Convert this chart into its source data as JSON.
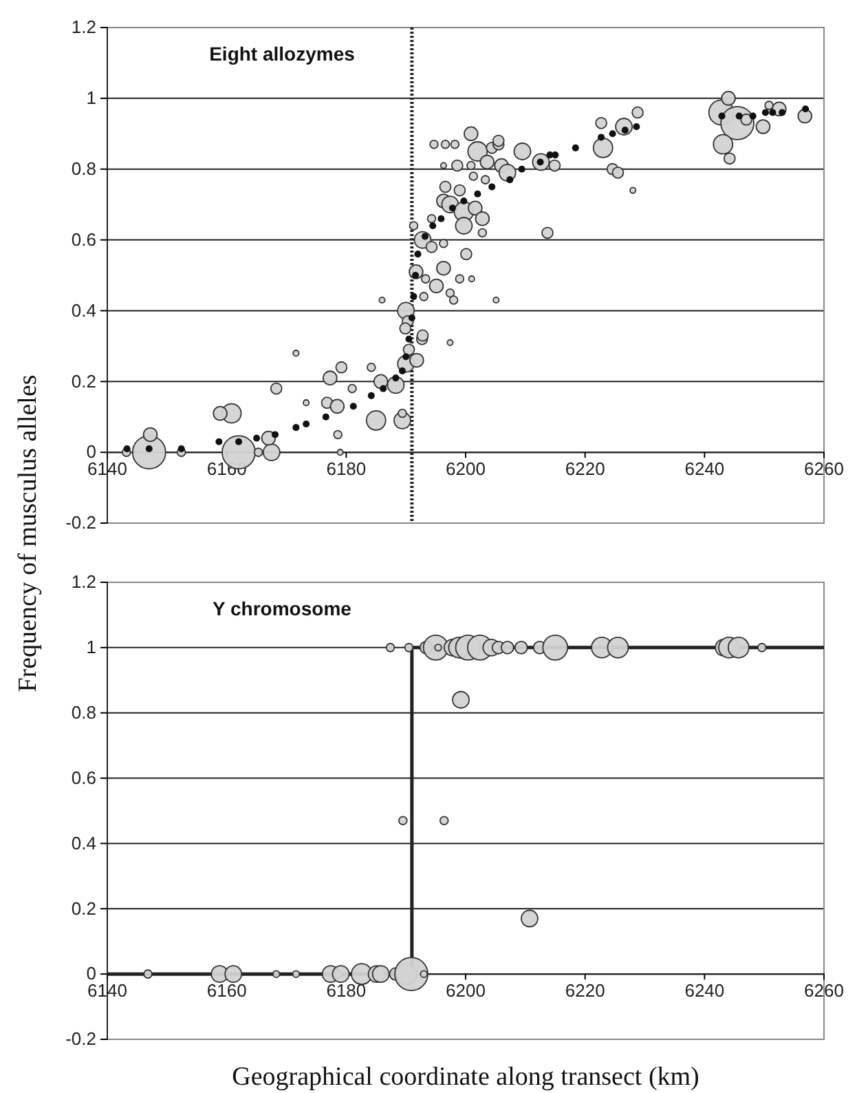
{
  "chart_data": [
    {
      "type": "bubble",
      "title": "Eight allozymes",
      "ylabel": "Frequency of musculus alleles",
      "xlim": [
        6140,
        6260
      ],
      "xticks": [
        6140,
        6160,
        6180,
        6200,
        6220,
        6240,
        6260
      ],
      "ylim": [
        -0.2,
        1.2
      ],
      "yticks": [
        -0.2,
        0,
        0.2,
        0.4,
        0.6,
        0.8,
        1,
        1.2
      ],
      "grid": "y",
      "marker": "circle",
      "ref_lines": [
        {
          "axis": "x",
          "value": 6191,
          "color": "#222222",
          "line_style": "dotted"
        }
      ],
      "series": [
        {
          "type": "bubble",
          "color": "#d3d3d3",
          "x": [
            6147,
            6147.2,
            6143.2,
            6152.4,
            6162,
            6160.8,
            6158.9,
            6165.3,
            6167.5,
            6167,
            6168.3,
            6171.6,
            6173.3,
            6177.3,
            6179.2,
            6176.8,
            6178.5,
            6178.6,
            6179,
            6181,
            6185,
            6184.2,
            6185.8,
            6188.3,
            6189.4,
            6189.4,
            6190,
            6191.8,
            6192.7,
            6200.9,
            6194.7,
            6196.6,
            6198.2,
            6202,
            6204.4,
            6205.5,
            6196.3,
            6198.6,
            6200.9,
            6203.6,
            6206,
            6201.3,
            6203.3,
            6196.6,
            6199,
            6196.3,
            6197.4,
            6199.7,
            6201.6,
            6202.8,
            6199.7,
            6194.3,
            6191.3,
            6192.8,
            6194.3,
            6196.3,
            6200.1,
            6202.8,
            6191.7,
            6196.3,
            6195.1,
            6193.3,
            6199,
            6201,
            6197.4,
            6198,
            6193,
            6186,
            6205.1,
            6190,
            6190.3,
            6189.9,
            6192.8,
            6197.4,
            6190.5,
            6242.8,
            6245.5,
            6244,
            6243.1,
            6244.2,
            6247,
            6249.8,
            6250.8,
            6252.5,
            6256.8,
            6222.7,
            6223,
            6226.5,
            6228.8,
            6228,
            6224.6,
            6225.5,
            6209.5,
            6212.6,
            6214.9,
            6213.7,
            6207,
            6205.5
          ],
          "values": [
            0,
            0.05,
            0,
            0,
            0,
            0.11,
            0.11,
            0,
            0,
            0.04,
            0.18,
            0.28,
            0.14,
            0.21,
            0.24,
            0.14,
            0.13,
            0.05,
            0,
            0.18,
            0.09,
            0.24,
            0.2,
            0.19,
            0.09,
            0.11,
            0.25,
            0.26,
            0.32,
            0.9,
            0.87,
            0.87,
            0.87,
            0.85,
            0.86,
            0.87,
            0.81,
            0.81,
            0.81,
            0.82,
            0.81,
            0.78,
            0.77,
            0.75,
            0.74,
            0.71,
            0.7,
            0.68,
            0.69,
            0.66,
            0.64,
            0.66,
            0.64,
            0.6,
            0.58,
            0.59,
            0.56,
            0.62,
            0.51,
            0.52,
            0.47,
            0.49,
            0.49,
            0.49,
            0.45,
            0.43,
            0.44,
            0.43,
            0.43,
            0.4,
            0.37,
            0.35,
            0.33,
            0.31,
            0.29,
            0.96,
            0.93,
            1,
            0.87,
            0.83,
            0.94,
            0.92,
            0.98,
            0.97,
            0.95,
            0.93,
            0.86,
            0.92,
            0.96,
            0.74,
            0.8,
            0.79,
            0.85,
            0.82,
            0.81,
            0.62,
            0.79,
            0.88
          ],
          "sizes": [
            1,
            0.17,
            0.06,
            0.06,
            1,
            0.34,
            0.17,
            0.06,
            0.25,
            0.17,
            0.11,
            0.03,
            0.03,
            0.17,
            0.11,
            0.11,
            0.17,
            0.06,
            0.03,
            0.06,
            0.34,
            0.06,
            0.17,
            0.25,
            0.25,
            0.06,
            0.25,
            0.17,
            0.11,
            0.17,
            0.06,
            0.06,
            0.06,
            0.34,
            0.11,
            0.11,
            0.03,
            0.11,
            0.06,
            0.17,
            0.17,
            0.06,
            0.06,
            0.11,
            0.11,
            0.17,
            0.25,
            0.34,
            0.17,
            0.17,
            0.25,
            0.06,
            0.06,
            0.25,
            0.11,
            0.06,
            0.11,
            0.06,
            0.17,
            0.17,
            0.17,
            0.06,
            0.06,
            0.03,
            0.06,
            0.06,
            0.06,
            0.03,
            0.03,
            0.25,
            0.11,
            0.11,
            0.11,
            0.03,
            0.11,
            0.56,
            1,
            0.17,
            0.34,
            0.11,
            0.11,
            0.17,
            0.06,
            0.17,
            0.17,
            0.11,
            0.34,
            0.25,
            0.11,
            0.03,
            0.11,
            0.11,
            0.25,
            0.25,
            0.11,
            0.11,
            0.25,
            0.11
          ]
        },
        {
          "type": "scatter",
          "color": "#111111",
          "x": [
            6143.3,
            6147,
            6152.4,
            6158.7,
            6162,
            6165,
            6168.1,
            6171.6,
            6173.3,
            6176.6,
            6181.2,
            6184.2,
            6186.2,
            6188.3,
            6189.4,
            6190,
            6190.5,
            6191,
            6191.3,
            6191.6,
            6192,
            6193.2,
            6194.5,
            6195.9,
            6197.8,
            6199.7,
            6202,
            6204.4,
            6207.4,
            6209.4,
            6212.5,
            6214.1,
            6215,
            6218.4,
            6222.7,
            6224.6,
            6226.7,
            6228.6,
            6242.9,
            6245.8,
            6248.1,
            6250.2,
            6251.4,
            6253,
            6256.9
          ],
          "values": [
            0.01,
            0.01,
            0.01,
            0.03,
            0.03,
            0.04,
            0.05,
            0.07,
            0.08,
            0.1,
            0.13,
            0.16,
            0.18,
            0.21,
            0.23,
            0.27,
            0.32,
            0.38,
            0.44,
            0.5,
            0.56,
            0.61,
            0.64,
            0.66,
            0.69,
            0.71,
            0.73,
            0.75,
            0.77,
            0.8,
            0.82,
            0.84,
            0.84,
            0.86,
            0.89,
            0.9,
            0.91,
            0.92,
            0.95,
            0.95,
            0.95,
            0.96,
            0.96,
            0.96,
            0.97
          ]
        }
      ]
    },
    {
      "type": "bubble",
      "title": "Y chromosome",
      "xlabel": "Geographical coordinate along transect (km)",
      "xlim": [
        6140,
        6260
      ],
      "xticks": [
        6140,
        6160,
        6180,
        6200,
        6220,
        6240,
        6260
      ],
      "ylim": [
        -0.2,
        1.2
      ],
      "yticks": [
        -0.2,
        0,
        0.2,
        0.4,
        0.6,
        0.8,
        1,
        1.2
      ],
      "grid": "y",
      "series": [
        {
          "type": "line",
          "color": "#222222",
          "line_style": "solid",
          "x": [
            6140,
            6191,
            6191,
            6260
          ],
          "values": [
            0,
            0,
            1,
            1
          ]
        },
        {
          "type": "bubble",
          "color": "#d3d3d3",
          "x": [
            6146.8,
            6158.8,
            6161.1,
            6168.3,
            6171.6,
            6177.4,
            6178.6,
            6179.1,
            6182.6,
            6185.1,
            6185.8,
            6188.3,
            6190.1,
            6190.9,
            6193,
            6187.4,
            6190.5,
            6193.4,
            6195,
            6195.4,
            6197.8,
            6199.3,
            6198.9,
            6200.4,
            6202.4,
            6204.3,
            6205.5,
            6207,
            6209.3,
            6212.4,
            6215,
            6222.8,
            6225.5,
            6243.2,
            6244.1,
            6245.7,
            6249.6,
            6189.5,
            6196.4,
            6199.2,
            6210.7
          ],
          "values": [
            0,
            0,
            0,
            0,
            0,
            0,
            0,
            0,
            0,
            0,
            0,
            0,
            0,
            0,
            0,
            1,
            1,
            1,
            1,
            1,
            1,
            1,
            1,
            1,
            1,
            1,
            1,
            1,
            1,
            1,
            1,
            1,
            1,
            1,
            1,
            1,
            1,
            0.47,
            0.47,
            0.84,
            0.17
          ],
          "sizes": [
            0.06,
            0.25,
            0.25,
            0.04,
            0.04,
            0.25,
            0.06,
            0.25,
            0.39,
            0.25,
            0.25,
            0.14,
            0.39,
            1,
            0.04,
            0.06,
            0.06,
            0.14,
            0.56,
            0.04,
            0.25,
            0.39,
            0.39,
            0.56,
            0.56,
            0.25,
            0.14,
            0.14,
            0.14,
            0.14,
            0.56,
            0.39,
            0.39,
            0.25,
            0.39,
            0.39,
            0.06,
            0.06,
            0.06,
            0.25,
            0.25
          ]
        }
      ]
    }
  ]
}
